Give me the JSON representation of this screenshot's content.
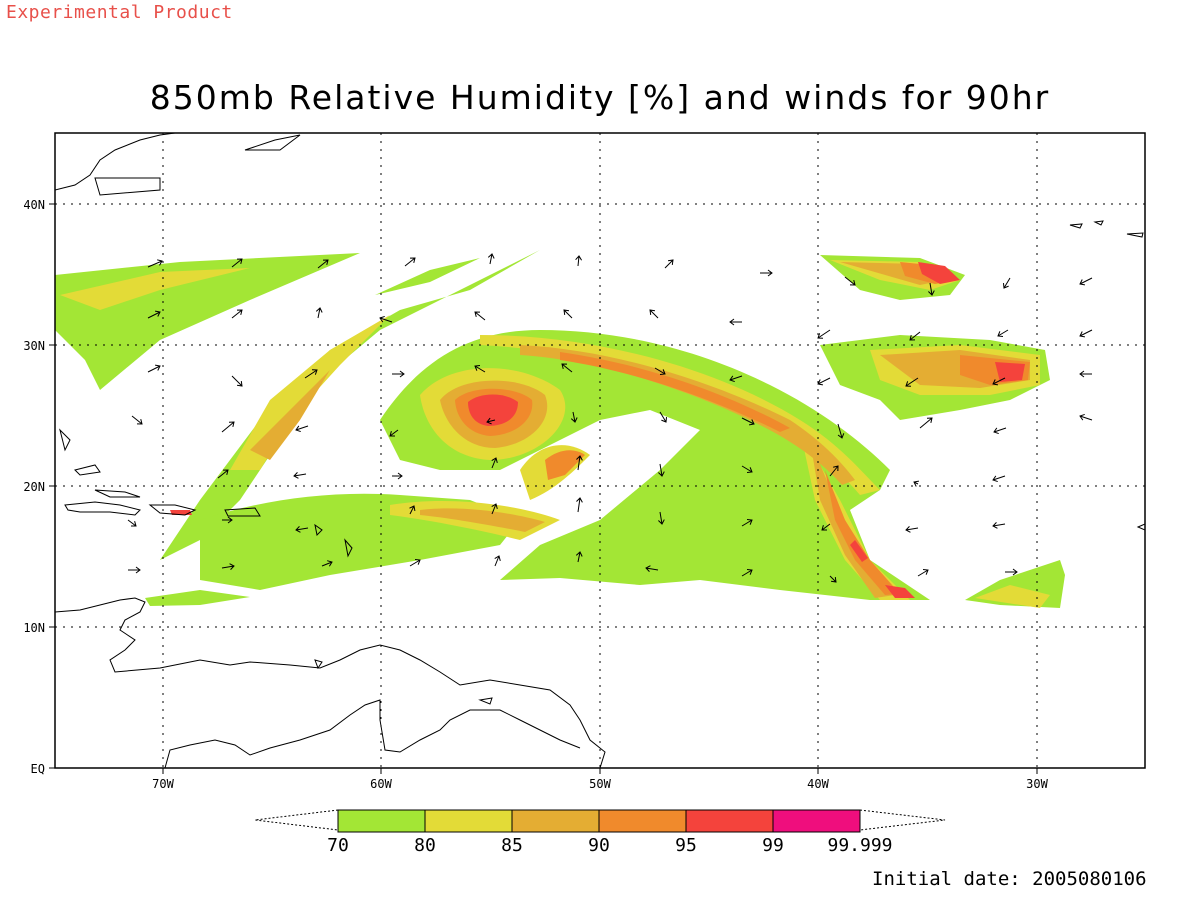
{
  "header": {
    "experimental_label": "Experimental Product",
    "title": "850mb Relative Humidity [%] and winds for 90hr"
  },
  "axes": {
    "lon_ticks": [
      "70W",
      "60W",
      "50W",
      "40W",
      "30W"
    ],
    "lat_ticks": [
      "EQ",
      "10N",
      "20N",
      "30N",
      "40N"
    ]
  },
  "colorbar": {
    "levels": [
      "70",
      "80",
      "85",
      "90",
      "95",
      "99",
      "99.999"
    ],
    "colors": [
      "#a3e635",
      "#e3db37",
      "#e4ad33",
      "#f08a2c",
      "#f4433c",
      "#ef0e7d"
    ]
  },
  "footer": {
    "initial_date": "Initial date: 2005080106"
  },
  "palette": {
    "rh_70": "#a3e635",
    "rh_80": "#e3db37",
    "rh_85": "#e4ad33",
    "rh_90": "#f08a2c",
    "rh_95": "#f4433c",
    "rh_99": "#ef0e7d",
    "experimental_text": "#e8504a"
  }
}
